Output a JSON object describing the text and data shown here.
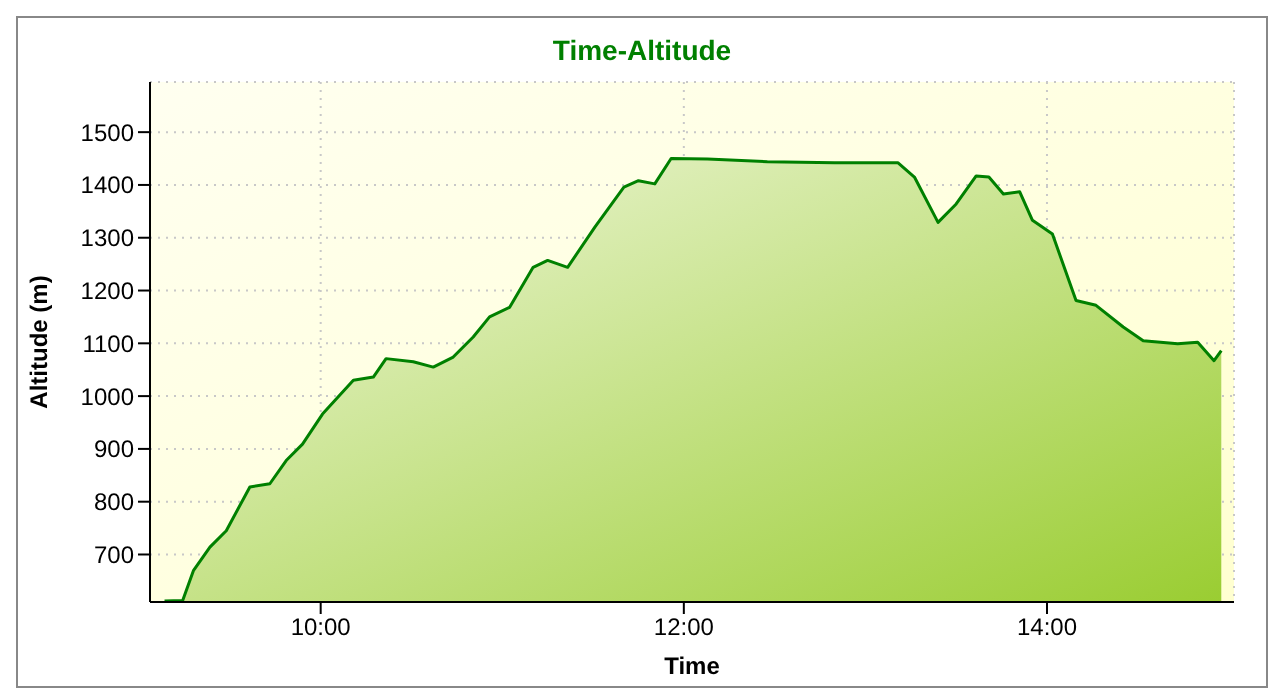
{
  "chart_data": {
    "type": "area",
    "title": "Time-Altitude",
    "xlabel": "Time",
    "ylabel": "Altitude (m)",
    "x": [
      9.14,
      9.24,
      9.3,
      9.39,
      9.48,
      9.61,
      9.72,
      9.81,
      9.9,
      10.01,
      10.18,
      10.29,
      10.36,
      10.51,
      10.62,
      10.73,
      10.84,
      10.93,
      11.04,
      11.17,
      11.25,
      11.36,
      11.51,
      11.67,
      11.75,
      11.84,
      11.93,
      12.13,
      12.46,
      12.83,
      13.18,
      13.27,
      13.4,
      13.5,
      13.61,
      13.68,
      13.76,
      13.85,
      13.92,
      14.03,
      14.16,
      14.27,
      14.42,
      14.53,
      14.72,
      14.83,
      14.92,
      14.96
    ],
    "series": [
      {
        "color": "#008000",
        "values": [
          612,
          613,
          670,
          714,
          745,
          828,
          834,
          878,
          909,
          966,
          1030,
          1036,
          1071,
          1065,
          1055,
          1074,
          1112,
          1150,
          1168,
          1244,
          1257,
          1244,
          1320,
          1396,
          1408,
          1402,
          1450,
          1449,
          1444,
          1442,
          1442,
          1415,
          1329,
          1364,
          1417,
          1415,
          1383,
          1387,
          1333,
          1307,
          1181,
          1172,
          1131,
          1105,
          1099,
          1102,
          1067,
          1086
        ]
      }
    ],
    "xlim": [
      9.06,
      15.03
    ],
    "xticks": [
      {
        "value": 10,
        "label": "10:00"
      },
      {
        "value": 12,
        "label": "12:00"
      },
      {
        "value": 14,
        "label": "14:00"
      }
    ],
    "ylim": [
      610,
      1595
    ],
    "yticks": [
      700,
      800,
      900,
      1000,
      1100,
      1200,
      1300,
      1400,
      1500
    ],
    "grid": true,
    "line_style": "solid"
  }
}
